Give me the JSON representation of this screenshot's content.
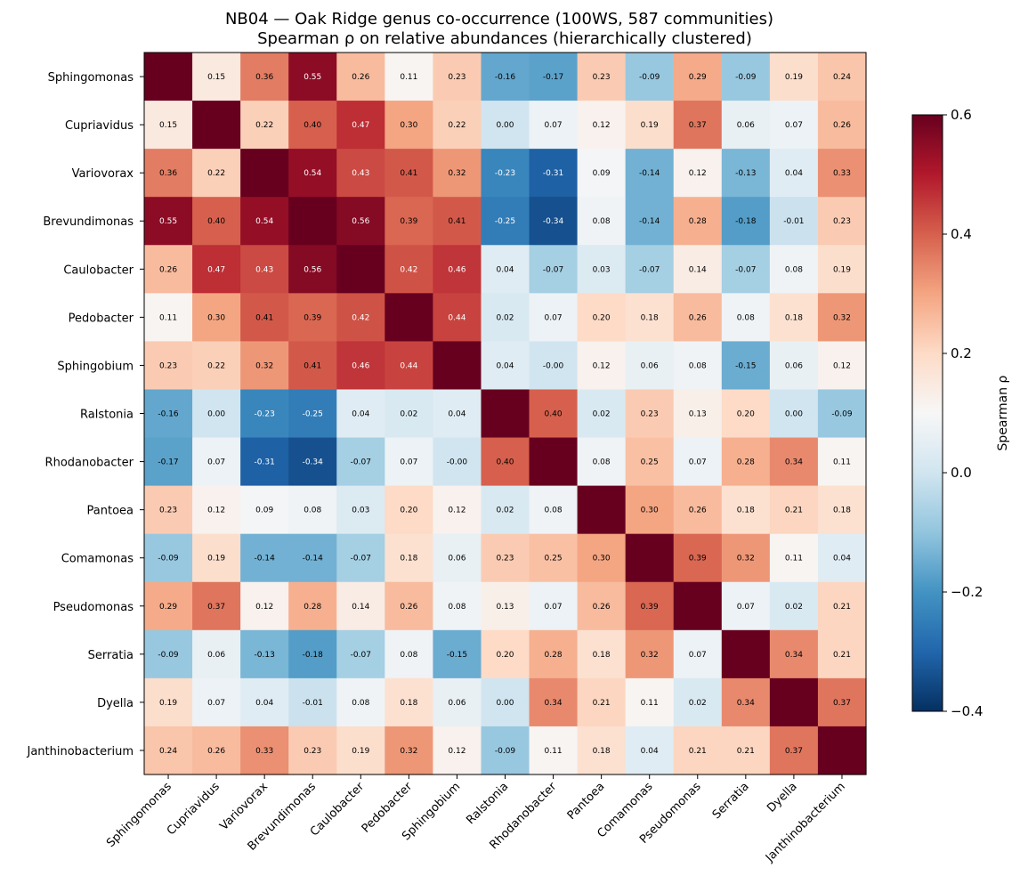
{
  "chart_data": {
    "type": "heatmap",
    "title": "NB04 — Oak Ridge genus co-occurrence (100WS, 587 communities)",
    "subtitle": "Spearman ρ on relative abundances (hierarchically clustered)",
    "labels": [
      "Sphingomonas",
      "Cupriavidus",
      "Variovorax",
      "Brevundimonas",
      "Caulobacter",
      "Pedobacter",
      "Sphingobium",
      "Ralstonia",
      "Rhodanobacter",
      "Pantoea",
      "Comamonas",
      "Pseudomonas",
      "Serratia",
      "Dyella",
      "Janthinobacterium"
    ],
    "values": [
      [
        null,
        0.15,
        0.36,
        0.55,
        0.26,
        0.11,
        0.23,
        -0.16,
        -0.17,
        0.23,
        -0.09,
        0.29,
        -0.09,
        0.19,
        0.24
      ],
      [
        0.15,
        null,
        0.22,
        0.4,
        0.47,
        0.3,
        0.22,
        0.0,
        0.07,
        0.12,
        0.19,
        0.37,
        0.06,
        0.07,
        0.26
      ],
      [
        0.36,
        0.22,
        null,
        0.54,
        0.43,
        0.41,
        0.32,
        -0.23,
        -0.31,
        0.09,
        -0.14,
        0.12,
        -0.13,
        0.04,
        0.33
      ],
      [
        0.55,
        0.4,
        0.54,
        null,
        0.56,
        0.39,
        0.41,
        -0.25,
        -0.34,
        0.08,
        -0.14,
        0.28,
        -0.18,
        -0.01,
        0.23
      ],
      [
        0.26,
        0.47,
        0.43,
        0.56,
        null,
        0.42,
        0.46,
        0.04,
        -0.07,
        0.03,
        -0.07,
        0.14,
        -0.07,
        0.08,
        0.19
      ],
      [
        0.11,
        0.3,
        0.41,
        0.39,
        0.42,
        null,
        0.44,
        0.02,
        0.07,
        0.2,
        0.18,
        0.26,
        0.08,
        0.18,
        0.32
      ],
      [
        0.23,
        0.22,
        0.32,
        0.41,
        0.46,
        0.44,
        null,
        0.04,
        -0.0,
        0.12,
        0.06,
        0.08,
        -0.15,
        0.06,
        0.12
      ],
      [
        -0.16,
        0.0,
        -0.23,
        -0.25,
        0.04,
        0.02,
        0.04,
        null,
        0.4,
        0.02,
        0.23,
        0.13,
        0.2,
        0.0,
        -0.09
      ],
      [
        -0.17,
        0.07,
        -0.31,
        -0.34,
        -0.07,
        0.07,
        -0.0,
        0.4,
        null,
        0.08,
        0.25,
        0.07,
        0.28,
        0.34,
        0.11
      ],
      [
        0.23,
        0.12,
        0.09,
        0.08,
        0.03,
        0.2,
        0.12,
        0.02,
        0.08,
        null,
        0.3,
        0.26,
        0.18,
        0.21,
        0.18
      ],
      [
        -0.09,
        0.19,
        -0.14,
        -0.14,
        -0.07,
        0.18,
        0.06,
        0.23,
        0.25,
        0.3,
        null,
        0.39,
        0.32,
        0.11,
        0.04
      ],
      [
        0.29,
        0.37,
        0.12,
        0.28,
        0.14,
        0.26,
        0.08,
        0.13,
        0.07,
        0.26,
        0.39,
        null,
        0.07,
        0.02,
        0.21
      ],
      [
        -0.09,
        0.06,
        -0.13,
        -0.18,
        -0.07,
        0.08,
        -0.15,
        0.2,
        0.28,
        0.18,
        0.32,
        0.07,
        null,
        0.34,
        0.21
      ],
      [
        0.19,
        0.07,
        0.04,
        -0.01,
        0.08,
        0.18,
        0.06,
        0.0,
        0.34,
        0.21,
        0.11,
        0.02,
        0.34,
        null,
        0.37
      ],
      [
        0.24,
        0.26,
        0.33,
        0.23,
        0.19,
        0.32,
        0.12,
        -0.09,
        0.11,
        0.18,
        0.04,
        0.21,
        0.21,
        0.37,
        null
      ]
    ],
    "diagonal_value": 1.0,
    "colormap": "RdBu_r",
    "vmin": -0.4,
    "vmax": 0.6,
    "colorbar": {
      "label": "Spearman ρ",
      "ticks": [
        -0.4,
        -0.2,
        0.0,
        0.2,
        0.4,
        0.6
      ],
      "tick_labels": [
        "−0.4",
        "−0.2",
        "0.0",
        "0.2",
        "0.4",
        "0.6"
      ],
      "placement": "right"
    }
  }
}
